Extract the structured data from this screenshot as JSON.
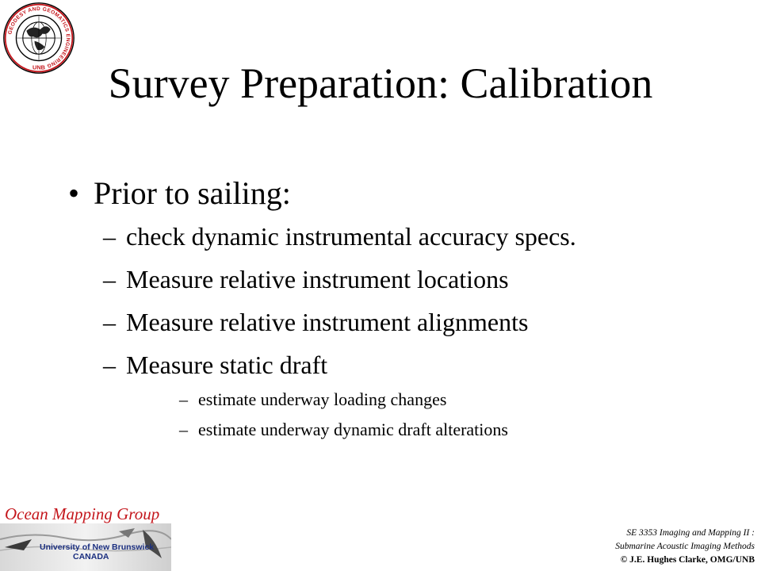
{
  "title": "Survey Preparation: Calibration",
  "bullet": "Prior to sailing:",
  "bullet_mark": "•",
  "dash": "–",
  "sub_items": [
    "check dynamic instrumental accuracy specs.",
    "Measure relative instrument locations",
    "Measure relative instrument alignments",
    "Measure static draft"
  ],
  "subsub_items": [
    "estimate underway loading changes",
    "estimate underway dynamic draft alterations"
  ],
  "seal": {
    "ring_text": "GEODESY AND GEOMATICS ENGINEERING",
    "bottom_text": "UNB",
    "color": "#c4161c"
  },
  "omg_logo": {
    "title": "Ocean Mapping Group",
    "line1": "University of New Brunswick",
    "line2": "CANADA",
    "title_color": "#c4161c",
    "text_color": "#1b2f80"
  },
  "footer": {
    "line1": "SE 3353 Imaging and Mapping II :",
    "line2": "Submarine Acoustic Imaging Methods",
    "line3": "© J.E. Hughes Clarke, OMG/UNB"
  }
}
